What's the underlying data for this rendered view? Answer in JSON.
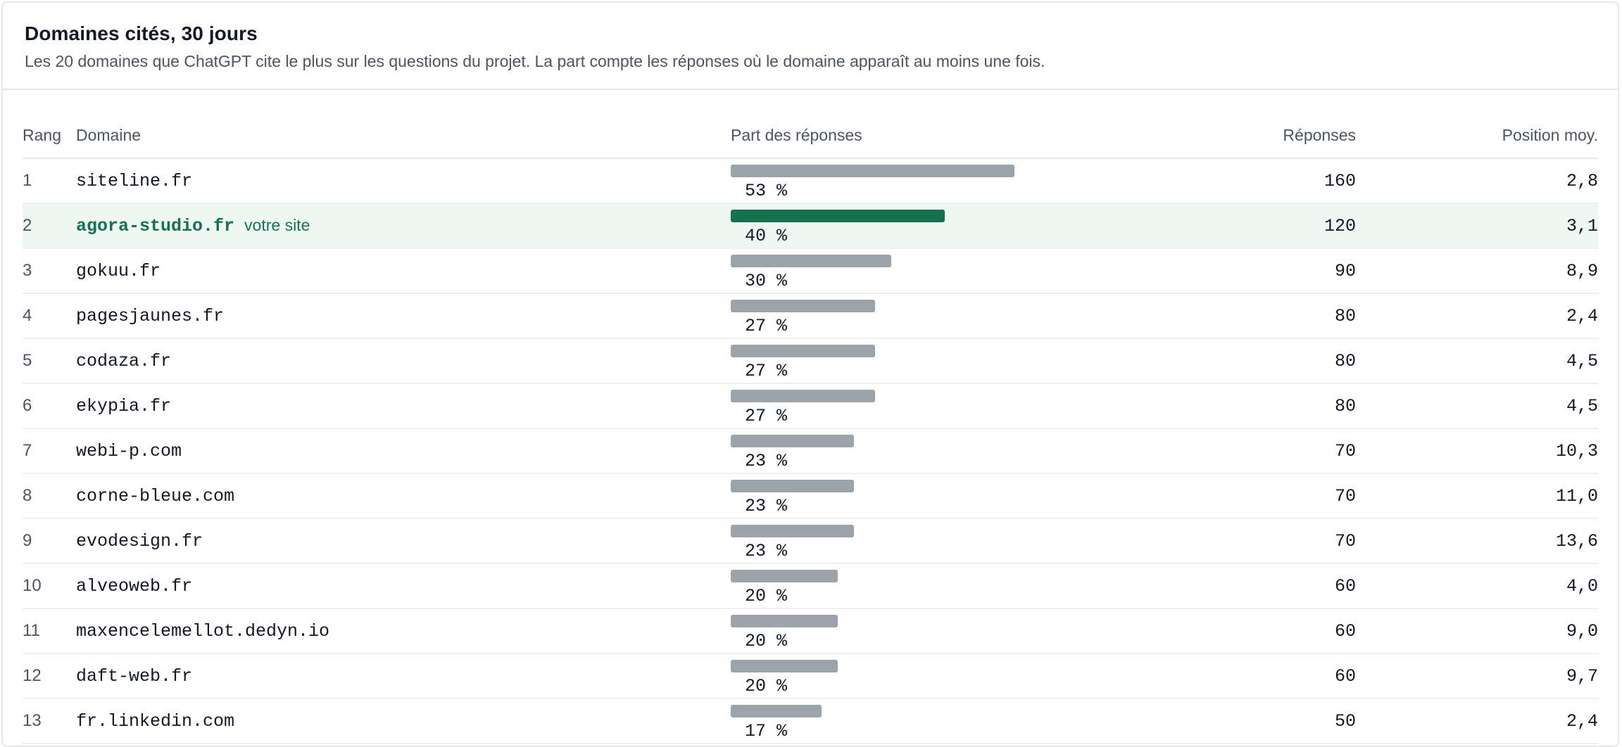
{
  "header": {
    "title": "Domaines cités, 30 jours",
    "subtitle": "Les 20 domaines que ChatGPT cite le plus sur les questions du projet. La part compte les réponses où le domaine apparaît au moins une fois."
  },
  "columns": {
    "rank": "Rang",
    "domain": "Domaine",
    "share": "Part des réponses",
    "responses": "Réponses",
    "position": "Position moy."
  },
  "colors": {
    "bar": "#9ca3ab",
    "highlight_bar": "#15724f",
    "highlight_bg": "#eef7f1"
  },
  "rows": [
    {
      "rank": "1",
      "domain": "siteline.fr",
      "badge": "",
      "share": 53,
      "share_label": "53 %",
      "responses": "160",
      "position": "2,8"
    },
    {
      "rank": "2",
      "domain": "agora-studio.fr",
      "badge": "votre site",
      "share": 40,
      "share_label": "40 %",
      "responses": "120",
      "position": "3,1"
    },
    {
      "rank": "3",
      "domain": "gokuu.fr",
      "badge": "",
      "share": 30,
      "share_label": "30 %",
      "responses": "90",
      "position": "8,9"
    },
    {
      "rank": "4",
      "domain": "pagesjaunes.fr",
      "badge": "",
      "share": 27,
      "share_label": "27 %",
      "responses": "80",
      "position": "2,4"
    },
    {
      "rank": "5",
      "domain": "codaza.fr",
      "badge": "",
      "share": 27,
      "share_label": "27 %",
      "responses": "80",
      "position": "4,5"
    },
    {
      "rank": "6",
      "domain": "ekypia.fr",
      "badge": "",
      "share": 27,
      "share_label": "27 %",
      "responses": "80",
      "position": "4,5"
    },
    {
      "rank": "7",
      "domain": "webi-p.com",
      "badge": "",
      "share": 23,
      "share_label": "23 %",
      "responses": "70",
      "position": "10,3"
    },
    {
      "rank": "8",
      "domain": "corne-bleue.com",
      "badge": "",
      "share": 23,
      "share_label": "23 %",
      "responses": "70",
      "position": "11,0"
    },
    {
      "rank": "9",
      "domain": "evodesign.fr",
      "badge": "",
      "share": 23,
      "share_label": "23 %",
      "responses": "70",
      "position": "13,6"
    },
    {
      "rank": "10",
      "domain": "alveoweb.fr",
      "badge": "",
      "share": 20,
      "share_label": "20 %",
      "responses": "60",
      "position": "4,0"
    },
    {
      "rank": "11",
      "domain": "maxencelemellot.dedyn.io",
      "badge": "",
      "share": 20,
      "share_label": "20 %",
      "responses": "60",
      "position": "9,0"
    },
    {
      "rank": "12",
      "domain": "daft-web.fr",
      "badge": "",
      "share": 20,
      "share_label": "20 %",
      "responses": "60",
      "position": "9,7"
    },
    {
      "rank": "13",
      "domain": "fr.linkedin.com",
      "badge": "",
      "share": 17,
      "share_label": "17 %",
      "responses": "50",
      "position": "2,4"
    }
  ]
}
